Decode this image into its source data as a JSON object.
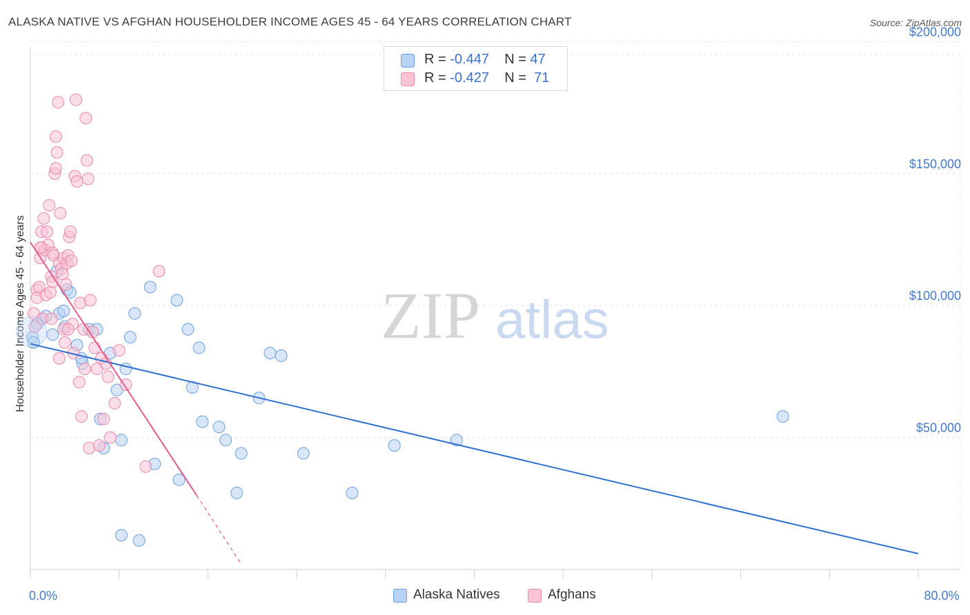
{
  "title": "ALASKA NATIVE VS AFGHAN HOUSEHOLDER INCOME AGES 45 - 64 YEARS CORRELATION CHART",
  "source": "Source: ZipAtlas.com",
  "watermark": {
    "zip": "ZIP",
    "atlas": "atlas"
  },
  "legend": {
    "series": [
      {
        "r_label": "R =",
        "r_value": "-0.447",
        "n_label": "N =",
        "n_value": "47",
        "fill": "#b8d2f3",
        "stroke": "#6a9ee0"
      },
      {
        "r_label": "R =",
        "r_value": "-0.427",
        "n_label": "N =",
        "n_value": "71",
        "fill": "#f8c3d3",
        "stroke": "#e888a8"
      }
    ]
  },
  "chart_data": {
    "type": "scatter",
    "title": "ALASKA NATIVE VS AFGHAN HOUSEHOLDER INCOME AGES 45 - 64 YEARS CORRELATION CHART",
    "xlabel": "",
    "ylabel": "Householder Income Ages 45 - 64 years",
    "xlim": [
      0,
      80
    ],
    "ylim": [
      0,
      210000
    ],
    "x_tick_labels": [
      {
        "value": 0,
        "label": "0.0%"
      },
      {
        "value": 80,
        "label": "80.0%"
      }
    ],
    "y_ticks": [
      {
        "value": 50000,
        "label": "$50,000"
      },
      {
        "value": 100000,
        "label": "$100,000"
      },
      {
        "value": 150000,
        "label": "$150,000"
      },
      {
        "value": 200000,
        "label": "$200,000"
      }
    ],
    "x_minor_ticks": [
      0,
      8,
      16,
      24,
      32,
      40,
      48,
      56,
      64,
      72,
      80
    ],
    "grid": true,
    "legend_position": "top-center",
    "series": [
      {
        "name": "Alaska Natives",
        "color": "#6a9ee0",
        "fill": "#b8d2f3",
        "line_color": "#2e6fd0",
        "trend": {
          "x0": 0,
          "y0": 85500,
          "x1": 80,
          "y1": 6000
        },
        "points": [
          [
            0.2,
            88000
          ],
          [
            0.6,
            93000
          ],
          [
            1.1,
            95000
          ],
          [
            2.4,
            113000
          ],
          [
            3.1,
            92000
          ],
          [
            3.3,
            106000
          ],
          [
            3.6,
            105000
          ],
          [
            2.0,
            89000
          ],
          [
            2.6,
            97000
          ],
          [
            4.2,
            85000
          ],
          [
            4.7,
            78000
          ],
          [
            5.3,
            91000
          ],
          [
            6.0,
            91000
          ],
          [
            7.2,
            82000
          ],
          [
            7.8,
            68000
          ],
          [
            6.3,
            57000
          ],
          [
            6.6,
            46000
          ],
          [
            8.2,
            49000
          ],
          [
            8.6,
            76000
          ],
          [
            9.0,
            88000
          ],
          [
            9.4,
            97000
          ],
          [
            10.8,
            107000
          ],
          [
            11.2,
            40000
          ],
          [
            13.2,
            102000
          ],
          [
            13.4,
            34000
          ],
          [
            14.2,
            91000
          ],
          [
            14.6,
            69000
          ],
          [
            15.2,
            84000
          ],
          [
            15.5,
            56000
          ],
          [
            17.0,
            54000
          ],
          [
            17.6,
            49000
          ],
          [
            18.6,
            29000
          ],
          [
            19.0,
            44000
          ],
          [
            20.6,
            65000
          ],
          [
            21.6,
            82000
          ],
          [
            22.6,
            81000
          ],
          [
            24.6,
            44000
          ],
          [
            29.0,
            29000
          ],
          [
            32.8,
            47000
          ],
          [
            38.4,
            49000
          ],
          [
            67.8,
            58000
          ],
          [
            8.2,
            13000
          ],
          [
            9.8,
            11000
          ],
          [
            4.6,
            80000
          ],
          [
            1.4,
            96000
          ],
          [
            0.3,
            86000
          ],
          [
            3.0,
            98000
          ]
        ]
      },
      {
        "name": "Afghans",
        "color": "#e888a8",
        "fill": "#f8c3d3",
        "line_color": "#e05b8a",
        "trend": {
          "x0": 0,
          "y0": 124000,
          "x1": 15.0,
          "y1": 28000,
          "dash_x1": 19.0,
          "dash_y1": 2000
        },
        "points": [
          [
            0.3,
            97000
          ],
          [
            0.4,
            92000
          ],
          [
            0.6,
            106000
          ],
          [
            0.6,
            103000
          ],
          [
            0.8,
            107000
          ],
          [
            0.9,
            118000
          ],
          [
            1.0,
            122000
          ],
          [
            1.0,
            128000
          ],
          [
            1.2,
            133000
          ],
          [
            1.3,
            121000
          ],
          [
            1.4,
            104000
          ],
          [
            1.5,
            128000
          ],
          [
            1.6,
            123000
          ],
          [
            1.7,
            138000
          ],
          [
            1.8,
            105000
          ],
          [
            1.9,
            111000
          ],
          [
            2.0,
            120000
          ],
          [
            2.1,
            119000
          ],
          [
            2.2,
            150000
          ],
          [
            2.3,
            152000
          ],
          [
            2.3,
            164000
          ],
          [
            2.4,
            158000
          ],
          [
            2.5,
            177000
          ],
          [
            2.6,
            116000
          ],
          [
            2.7,
            135000
          ],
          [
            2.8,
            114000
          ],
          [
            2.9,
            112000
          ],
          [
            3.0,
            118000
          ],
          [
            3.0,
            91000
          ],
          [
            3.1,
            86000
          ],
          [
            3.2,
            108000
          ],
          [
            3.3,
            116000
          ],
          [
            3.4,
            119000
          ],
          [
            3.5,
            126000
          ],
          [
            3.6,
            128000
          ],
          [
            3.7,
            117000
          ],
          [
            3.8,
            93000
          ],
          [
            3.9,
            82000
          ],
          [
            4.0,
            149000
          ],
          [
            4.1,
            178000
          ],
          [
            4.2,
            147000
          ],
          [
            4.4,
            71000
          ],
          [
            4.5,
            101000
          ],
          [
            4.6,
            58000
          ],
          [
            4.8,
            91000
          ],
          [
            5.0,
            171000
          ],
          [
            5.1,
            155000
          ],
          [
            5.2,
            148000
          ],
          [
            5.3,
            46000
          ],
          [
            5.4,
            102000
          ],
          [
            5.6,
            90000
          ],
          [
            5.8,
            84000
          ],
          [
            6.0,
            76000
          ],
          [
            6.2,
            47000
          ],
          [
            6.4,
            80000
          ],
          [
            6.6,
            57000
          ],
          [
            6.8,
            78000
          ],
          [
            7.0,
            73000
          ],
          [
            7.2,
            50000
          ],
          [
            7.6,
            63000
          ],
          [
            8.0,
            83000
          ],
          [
            8.6,
            70000
          ],
          [
            10.4,
            39000
          ],
          [
            11.6,
            113000
          ],
          [
            2.6,
            80000
          ],
          [
            3.4,
            91000
          ],
          [
            1.1,
            95000
          ],
          [
            0.9,
            122000
          ],
          [
            1.9,
            95000
          ],
          [
            4.9,
            76000
          ],
          [
            2.0,
            109000
          ]
        ]
      }
    ]
  }
}
